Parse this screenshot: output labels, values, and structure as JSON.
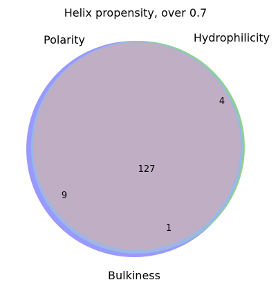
{
  "title": "Helix propensity, over 0.7",
  "sets": [
    {
      "name": "Polarity",
      "color": "#9999ff"
    },
    {
      "name": "Hydrophilicity",
      "color": "#90d090"
    },
    {
      "name": "Bulkiness",
      "color": "#99b8e8"
    }
  ],
  "colors": {
    "polarity": "#9999ff",
    "hydrophilicity": "#90d090",
    "bulkiness": "#99b8e8",
    "overlap": "#c0aec4"
  },
  "regions": {
    "all_three": "127",
    "polarity_only": "9",
    "hydrophilicity_only": "4",
    "bulkiness_only": "1"
  }
}
